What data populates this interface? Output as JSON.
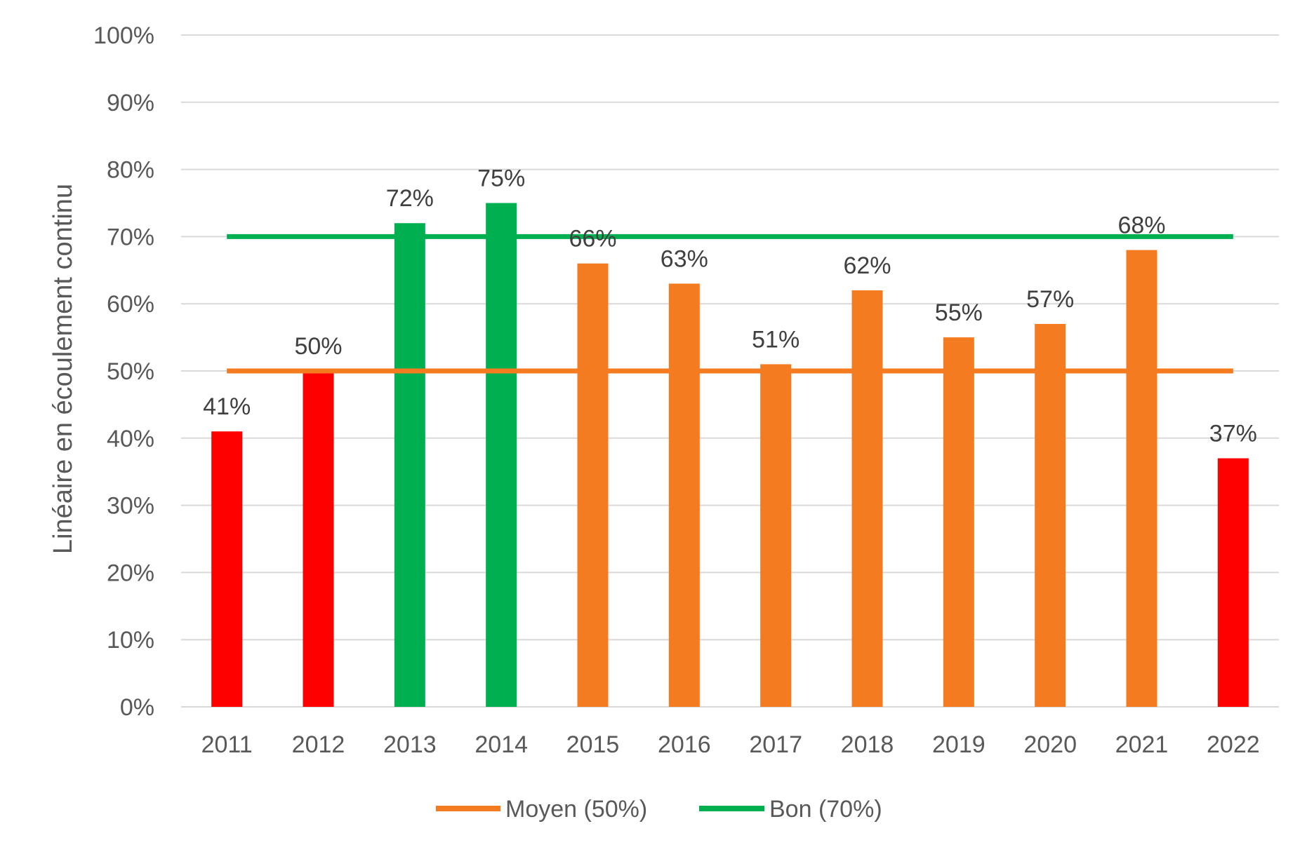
{
  "chart_data": {
    "type": "bar",
    "categories": [
      "2011",
      "2012",
      "2013",
      "2014",
      "2015",
      "2016",
      "2017",
      "2018",
      "2019",
      "2020",
      "2021",
      "2022"
    ],
    "values": [
      41,
      50,
      72,
      75,
      66,
      63,
      51,
      62,
      55,
      57,
      68,
      37
    ],
    "data_labels": [
      "41%",
      "50%",
      "72%",
      "75%",
      "66%",
      "63%",
      "51%",
      "62%",
      "55%",
      "57%",
      "68%",
      "37%"
    ],
    "bar_colors": [
      "#ff0000",
      "#ff0000",
      "#00b050",
      "#00b050",
      "#f47b20",
      "#f47b20",
      "#f47b20",
      "#f47b20",
      "#f47b20",
      "#f47b20",
      "#f47b20",
      "#ff0000"
    ],
    "title": "",
    "xlabel": "",
    "ylabel": "Linéaire en écoulement continu",
    "ylim": [
      0,
      100
    ],
    "yticks": [
      0,
      10,
      20,
      30,
      40,
      50,
      60,
      70,
      80,
      90,
      100
    ],
    "ytick_labels": [
      "0%",
      "10%",
      "20%",
      "30%",
      "40%",
      "50%",
      "60%",
      "70%",
      "80%",
      "90%",
      "100%"
    ],
    "reference_lines": [
      {
        "name": "Moyen (50%)",
        "value": 50,
        "color": "#f47b20"
      },
      {
        "name": "Bon (70%)",
        "value": 70,
        "color": "#00b050"
      }
    ],
    "grid": true,
    "legend_position": "bottom"
  }
}
